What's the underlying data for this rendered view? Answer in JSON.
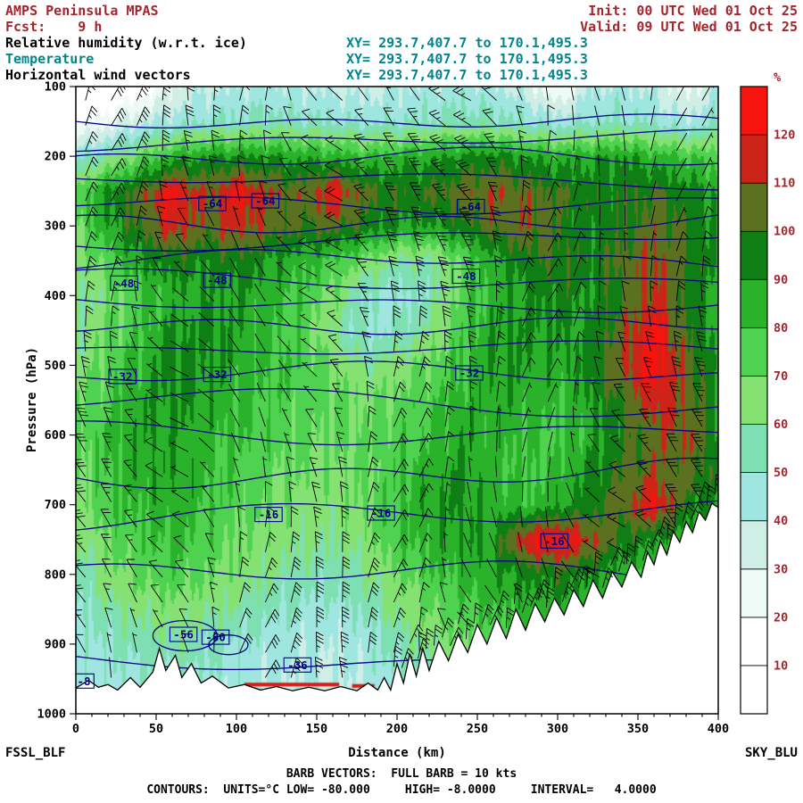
{
  "header": {
    "title": "AMPS Peninsula MPAS",
    "fcst_label": "Fcst:    9 h",
    "init_label": "Init: 00 UTC Wed 01 Oct 25",
    "valid_label": "Valid: 09 UTC Wed 01 Oct 25",
    "fields": [
      {
        "label": "Relative humidity (w.r.t. ice)",
        "xy": "XY= 293.7,407.7 to 170.1,495.3",
        "label_color": "#000000"
      },
      {
        "label": "Temperature",
        "xy": "XY= 293.7,407.7 to 170.1,495.3",
        "label_color": "#00868b"
      },
      {
        "label": "Horizontal wind vectors",
        "xy": "XY= 293.7,407.7 to 170.1,495.3",
        "label_color": "#000000"
      }
    ]
  },
  "axes": {
    "y_title": "Pressure (hPa)",
    "y_ticks": [
      100,
      200,
      300,
      400,
      500,
      600,
      700,
      800,
      900,
      1000
    ],
    "x_title": "Distance (km)",
    "x_ticks": [
      0,
      50,
      100,
      150,
      200,
      250,
      300,
      350,
      400
    ],
    "x_minor_step_km": 10,
    "x_range": [
      0,
      400
    ],
    "y_range": [
      100,
      1000
    ]
  },
  "corner_labels": {
    "left": "FSSL_BLF",
    "right": "SKY_BLU"
  },
  "colorbar": {
    "unit": "%",
    "tick_labels": [
      10,
      20,
      30,
      40,
      50,
      60,
      70,
      80,
      90,
      100,
      110,
      120
    ],
    "colors_bottom_to_top": [
      "#ffffff",
      "#ffffff",
      "#eefaf6",
      "#cfeee6",
      "#9fe5e0",
      "#7edfb2",
      "#85e272",
      "#4fd24f",
      "#2ab32a",
      "#0f7e14",
      "#5b7120",
      "#cc2418",
      "#f8140e"
    ]
  },
  "footer": {
    "barb_line": "BARB VECTORS:  FULL BARB = 10 kts",
    "contour_line": "CONTOURS:  UNITS=°C LOW= -80.000     HIGH= -8.0000     INTERVAL=   4.0000"
  },
  "colors": {
    "dark_red": "#a1262d",
    "teal": "#00868b",
    "contour": "#00008b",
    "frame": "#000000",
    "terrain": "#ffffff",
    "strip_red": "#dd1a12"
  },
  "chart_data": {
    "type": "heatmap",
    "title": "Relative humidity (w.r.t. ice) cross-section with temperature contours and horizontal wind vectors",
    "xlabel": "Distance (km)",
    "ylabel": "Pressure (hPa)",
    "xlim": [
      0,
      400
    ],
    "ylim": [
      1000,
      100
    ],
    "colorbar_unit": "%",
    "rh_levels": [
      10,
      20,
      30,
      40,
      50,
      60,
      70,
      80,
      90,
      100,
      110,
      120
    ],
    "rh_grid": {
      "x_km": [
        0,
        20,
        40,
        60,
        80,
        100,
        120,
        140,
        160,
        180,
        200,
        220,
        240,
        260,
        280,
        300,
        320,
        340,
        360,
        380,
        400
      ],
      "p_hpa": [
        100,
        150,
        200,
        250,
        300,
        350,
        400,
        450,
        500,
        550,
        600,
        650,
        700,
        750,
        800,
        850,
        900,
        950,
        1000
      ],
      "values": [
        [
          5,
          8,
          12,
          30,
          38,
          40,
          42,
          40,
          38,
          36,
          40,
          42,
          44,
          42,
          35,
          18,
          40,
          42,
          38,
          25,
          42
        ],
        [
          18,
          25,
          38,
          45,
          50,
          52,
          54,
          52,
          50,
          48,
          50,
          52,
          55,
          54,
          50,
          45,
          50,
          52,
          48,
          42,
          50
        ],
        [
          45,
          60,
          72,
          85,
          90,
          92,
          90,
          88,
          85,
          82,
          85,
          88,
          92,
          95,
          90,
          85,
          88,
          90,
          85,
          80,
          75
        ],
        [
          75,
          92,
          104,
          124,
          108,
          122,
          110,
          104,
          121,
          102,
          98,
          100,
          106,
          110,
          106,
          100,
          96,
          98,
          100,
          95,
          88
        ],
        [
          70,
          88,
          102,
          116,
          104,
          114,
          106,
          100,
          104,
          96,
          90,
          88,
          96,
          104,
          108,
          100,
          92,
          96,
          106,
          98,
          88
        ],
        [
          62,
          75,
          88,
          96,
          92,
          96,
          90,
          84,
          78,
          68,
          58,
          56,
          72,
          86,
          96,
          100,
          96,
          104,
          112,
          100,
          90
        ],
        [
          56,
          66,
          78,
          86,
          88,
          90,
          84,
          78,
          68,
          50,
          46,
          54,
          74,
          86,
          90,
          94,
          90,
          100,
          114,
          96,
          86
        ],
        [
          60,
          70,
          80,
          90,
          92,
          88,
          82,
          74,
          60,
          48,
          52,
          62,
          78,
          88,
          92,
          90,
          92,
          106,
          124,
          100,
          88
        ],
        [
          64,
          74,
          84,
          94,
          90,
          86,
          80,
          78,
          70,
          60,
          66,
          72,
          80,
          90,
          88,
          86,
          94,
          110,
          126,
          104,
          90
        ],
        [
          68,
          78,
          88,
          92,
          88,
          82,
          78,
          74,
          72,
          68,
          72,
          78,
          84,
          88,
          86,
          82,
          90,
          100,
          118,
          106,
          92
        ],
        [
          70,
          82,
          88,
          90,
          84,
          80,
          76,
          72,
          70,
          72,
          76,
          80,
          88,
          86,
          80,
          78,
          86,
          96,
          106,
          110,
          94
        ],
        [
          68,
          80,
          86,
          88,
          82,
          78,
          72,
          70,
          68,
          70,
          78,
          86,
          90,
          84,
          78,
          82,
          92,
          102,
          108,
          104,
          96
        ],
        [
          64,
          78,
          82,
          86,
          80,
          74,
          70,
          66,
          64,
          70,
          80,
          88,
          92,
          86,
          82,
          88,
          96,
          106,
          122,
          96,
          90
        ],
        [
          58,
          72,
          78,
          82,
          76,
          70,
          66,
          62,
          60,
          66,
          78,
          84,
          88,
          92,
          120,
          126,
          112,
          96,
          90,
          84,
          80
        ],
        [
          52,
          66,
          72,
          76,
          70,
          66,
          60,
          56,
          54,
          60,
          70,
          78,
          84,
          88,
          92,
          96,
          90,
          85,
          80,
          78,
          76
        ],
        [
          48,
          58,
          62,
          66,
          62,
          58,
          52,
          48,
          46,
          52,
          62,
          70,
          76,
          80,
          84,
          88,
          84,
          80,
          76,
          74,
          72
        ],
        [
          44,
          50,
          55,
          58,
          54,
          48,
          45,
          42,
          40,
          45,
          55,
          62,
          68,
          74,
          78,
          82,
          78,
          74,
          70,
          68,
          66
        ],
        [
          42,
          46,
          48,
          50,
          48,
          44,
          42,
          40,
          38,
          42,
          48,
          54,
          58,
          62,
          66,
          70,
          68,
          64,
          62,
          60,
          58
        ],
        [
          40,
          44,
          46,
          48,
          46,
          42,
          40,
          38,
          36,
          40,
          46,
          52,
          56,
          60,
          64,
          68,
          66,
          62,
          60,
          58,
          56
        ]
      ]
    },
    "temp_contours": {
      "low": -80,
      "high": -8,
      "interval": 4,
      "unit": "°C",
      "anchors": {
        "t": [
          -80,
          -72,
          -64,
          -56,
          -48,
          -40,
          -32,
          -24,
          -16,
          -12,
          -8
        ],
        "p": [
          150,
          205,
          268,
          320,
          380,
          440,
          515,
          595,
          715,
          800,
          930
        ]
      }
    },
    "contour_labels": [
      {
        "text": "-64",
        "km": 85,
        "p": 268
      },
      {
        "text": "-64",
        "km": 118,
        "p": 264
      },
      {
        "text": "-64",
        "km": 246,
        "p": 272
      },
      {
        "text": "-48",
        "km": 30,
        "p": 382
      },
      {
        "text": "-48",
        "km": 88,
        "p": 378
      },
      {
        "text": "-48",
        "km": 243,
        "p": 372
      },
      {
        "text": "-32",
        "km": 29,
        "p": 516
      },
      {
        "text": "-32",
        "km": 88,
        "p": 513
      },
      {
        "text": "-32",
        "km": 245,
        "p": 511
      },
      {
        "text": "-16",
        "km": 120,
        "p": 714
      },
      {
        "text": "-16",
        "km": 190,
        "p": 712
      },
      {
        "text": "-16",
        "km": 298,
        "p": 752
      },
      {
        "text": "-56",
        "km": 67,
        "p": 886
      },
      {
        "text": "-60",
        "km": 87,
        "p": 890
      },
      {
        "text": "-36",
        "km": 138,
        "p": 930
      },
      {
        "text": "-8",
        "km": 5,
        "p": 953
      }
    ],
    "terrain_km_hpa": [
      [
        0,
        963
      ],
      [
        8,
        952
      ],
      [
        14,
        962
      ],
      [
        20,
        958
      ],
      [
        26,
        966
      ],
      [
        34,
        948
      ],
      [
        40,
        962
      ],
      [
        48,
        940
      ],
      [
        52,
        906
      ],
      [
        56,
        938
      ],
      [
        62,
        916
      ],
      [
        66,
        948
      ],
      [
        72,
        928
      ],
      [
        78,
        956
      ],
      [
        85,
        946
      ],
      [
        95,
        963
      ],
      [
        105,
        958
      ],
      [
        115,
        966
      ],
      [
        125,
        961
      ],
      [
        135,
        967
      ],
      [
        145,
        962
      ],
      [
        155,
        967
      ],
      [
        165,
        961
      ],
      [
        175,
        967
      ],
      [
        182,
        956
      ],
      [
        188,
        966
      ],
      [
        192,
        948
      ],
      [
        196,
        966
      ],
      [
        200,
        928
      ],
      [
        204,
        956
      ],
      [
        208,
        914
      ],
      [
        212,
        946
      ],
      [
        216,
        906
      ],
      [
        220,
        938
      ],
      [
        226,
        896
      ],
      [
        232,
        924
      ],
      [
        238,
        886
      ],
      [
        244,
        912
      ],
      [
        250,
        872
      ],
      [
        256,
        900
      ],
      [
        262,
        862
      ],
      [
        268,
        892
      ],
      [
        274,
        850
      ],
      [
        280,
        880
      ],
      [
        286,
        842
      ],
      [
        292,
        868
      ],
      [
        298,
        834
      ],
      [
        304,
        858
      ],
      [
        310,
        822
      ],
      [
        316,
        846
      ],
      [
        322,
        808
      ],
      [
        328,
        834
      ],
      [
        334,
        796
      ],
      [
        340,
        818
      ],
      [
        346,
        782
      ],
      [
        352,
        804
      ],
      [
        356,
        768
      ],
      [
        360,
        786
      ],
      [
        364,
        752
      ],
      [
        368,
        772
      ],
      [
        372,
        738
      ],
      [
        376,
        754
      ],
      [
        380,
        724
      ],
      [
        384,
        740
      ],
      [
        388,
        710
      ],
      [
        392,
        722
      ],
      [
        396,
        698
      ],
      [
        400,
        704
      ]
    ],
    "surface_red_strips": [
      [
        105,
        164,
        958
      ],
      [
        172,
        186,
        960
      ]
    ],
    "wind_barbs": {
      "full_barb_kts": 10,
      "col_step_km": 16,
      "row_step_hpa": 36
    }
  }
}
